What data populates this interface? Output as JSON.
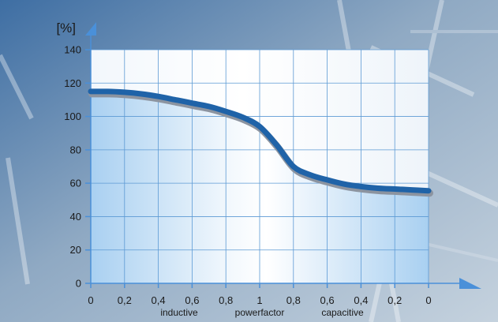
{
  "chart_data": {
    "type": "area",
    "ylabel": "[%]",
    "ylim": [
      0,
      140
    ],
    "yticks": [
      0,
      20,
      40,
      60,
      80,
      100,
      120,
      140
    ],
    "x_tick_labels": [
      "0",
      "0,2",
      "0,4",
      "0,6",
      "0,8",
      "1",
      "0,8",
      "0,6",
      "0,4",
      "0,2",
      "0"
    ],
    "x_group_labels": [
      "inductive",
      "powerfactor",
      "capacitive"
    ],
    "grid": true,
    "series": [
      {
        "x_index": [
          0,
          0.5,
          1,
          1.5,
          2,
          2.5,
          3,
          3.5,
          4,
          4.5,
          5,
          5.5,
          6,
          6.5,
          7,
          7.5,
          8,
          8.5,
          9,
          9.5,
          10
        ],
        "values": [
          115,
          115,
          114.5,
          113.5,
          112,
          110,
          108,
          106,
          103,
          99.5,
          94,
          83,
          70,
          65,
          62,
          59.5,
          58,
          57,
          56.5,
          56,
          55.5
        ]
      }
    ],
    "colors": {
      "curve": "#1f63a8",
      "curve_shadow": "#8c94a0",
      "grid": "#5d9ad4",
      "fill_edge": "#a8cff0",
      "fill_center": "#ffffff",
      "arrow": "#4a90d9"
    }
  }
}
